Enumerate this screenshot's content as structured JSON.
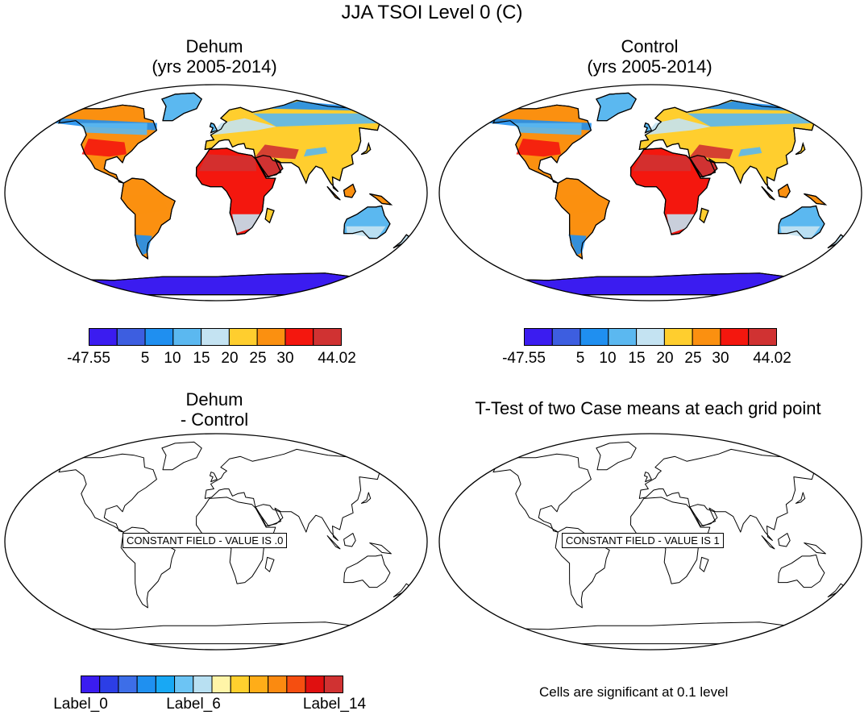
{
  "figure_title": "JJA TSOI Level 0 (C)",
  "panels": {
    "dehum": {
      "title_line1": "Dehum",
      "title_line2": "(yrs 2005-2014)"
    },
    "control": {
      "title_line1": "Control",
      "title_line2": "(yrs 2005-2014)"
    },
    "diff": {
      "title_line1": "Dehum",
      "title_line2": "- Control",
      "constant_field_text": "CONSTANT FIELD - VALUE IS .0"
    },
    "ttest": {
      "title": "T-Test of two Case means at each grid point",
      "constant_field_text": "CONSTANT FIELD - VALUE IS 1",
      "note": "Cells are significant at 0.1 level"
    }
  },
  "colorbar_top": {
    "colors": [
      "#3b1cf0",
      "#3d5ee0",
      "#1f8ff0",
      "#5bb8f0",
      "#c4e3f2",
      "#ffce2e",
      "#fb9010",
      "#f4170e",
      "#d03232"
    ],
    "labels": [
      "-47.55",
      "5",
      "10",
      "15",
      "20",
      "25",
      "30",
      "44.02"
    ]
  },
  "colorbar_diff": {
    "colors": [
      "#3b1cf0",
      "#2c3ee6",
      "#3d6ee8",
      "#1f90f0",
      "#18a8f4",
      "#6cc4f4",
      "#b8e0f2",
      "#fff5a8",
      "#ffd02e",
      "#ffad18",
      "#fb8a10",
      "#f54e10",
      "#e01010",
      "#d03232"
    ],
    "labels": [
      "Label_0",
      "Label_6",
      "Label_14"
    ]
  }
}
